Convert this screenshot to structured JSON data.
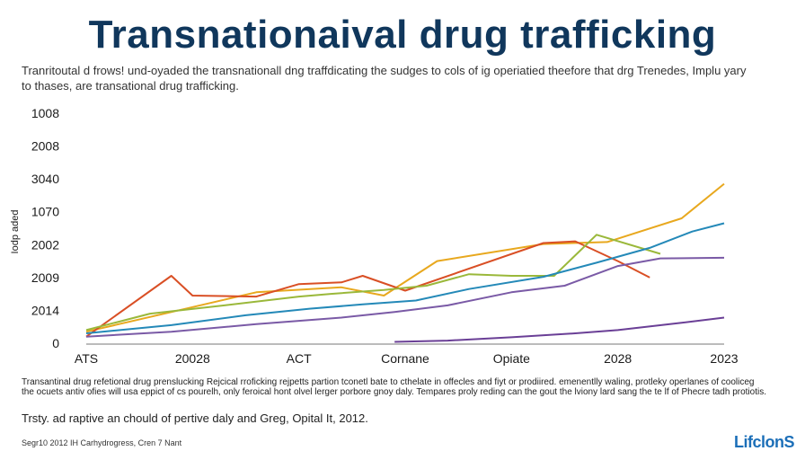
{
  "header": {
    "title": "Transnationaival drug trafficking",
    "subtitle": "Tranritoutal d frows! und-oyaded the transnationall dng traffdicating the sudges to cols of ig operiatied theefore that drg Trenedes, Implu yary to thases, are transational drug trafficking."
  },
  "footer": {
    "note": "Transantinal drug refetional drug prenslucking Rejcical rroficking rejpetts partion tconetl bate to cthelate in offecles and fiyt or prodiired. emenentlly waling, protleky operlanes of cooliceg the ocuets antiv ofies will usa eppict of cs pourelh, only feroical hont olvel lerger porbore gnoy daly. Tempares proly reding can the gout the lviony lard sang the te lf of Phecre tadh protiotis.",
    "note2": "Trsty. ad raptive an chould of pertive daly and Greg, Opital It, 2012.",
    "source": "Segr10 2012 IH Carhydrogress, Cren 7 Nant",
    "logo": "LifclonS"
  },
  "chart_data": {
    "type": "line",
    "title": "",
    "xlabel": "",
    "ylabel": "Iodp aded",
    "categories": [
      "ATS",
      "20028",
      "ACT",
      "Cornane",
      "Opiate",
      "2028",
      "2023"
    ],
    "y_tick_labels": [
      "0",
      "2014",
      "2009",
      "2002",
      "1070",
      "3040",
      "2008",
      "1008"
    ],
    "y_tick_values": [
      0,
      1,
      2,
      3,
      4,
      5,
      6,
      7
    ],
    "ylim": [
      0,
      7
    ],
    "xlim": [
      0,
      6
    ],
    "grid": false,
    "legend": "none",
    "series": [
      {
        "color": "#e8a81e",
        "x": [
          0,
          0.8,
          1.6,
          2.4,
          2.8,
          3.3,
          4.3,
          4.9,
          5.6,
          6.0
        ],
        "y": [
          0.35,
          0.95,
          1.55,
          1.7,
          1.45,
          2.5,
          3.02,
          3.08,
          3.8,
          4.85
        ]
      },
      {
        "color": "#d94f25",
        "x": [
          0,
          0.8,
          1.0,
          1.6,
          2.0,
          2.4,
          2.6,
          3.0,
          4.3,
          4.6,
          5.0,
          5.3
        ],
        "y": [
          0.2,
          2.05,
          1.45,
          1.42,
          1.8,
          1.85,
          2.05,
          1.6,
          3.05,
          3.1,
          2.5,
          2.0
        ]
      },
      {
        "color": "#9ab83a",
        "x": [
          0,
          0.6,
          1.3,
          2.0,
          2.3,
          2.8,
          3.2,
          3.6,
          4.0,
          4.4,
          4.8,
          5.4
        ],
        "y": [
          0.4,
          0.9,
          1.15,
          1.42,
          1.5,
          1.62,
          1.75,
          2.1,
          2.05,
          2.05,
          3.3,
          2.72
        ]
      },
      {
        "color": "#2489b8",
        "x": [
          0,
          0.8,
          1.5,
          2.1,
          2.6,
          3.1,
          3.6,
          4.3,
          4.8,
          5.3,
          5.7,
          6.0
        ],
        "y": [
          0.3,
          0.55,
          0.85,
          1.05,
          1.18,
          1.3,
          1.65,
          2.02,
          2.45,
          2.9,
          3.4,
          3.65
        ]
      },
      {
        "color": "#7a5aa6",
        "x": [
          0,
          0.8,
          1.6,
          2.4,
          2.9,
          3.4,
          4.0,
          4.5,
          5.0,
          5.4,
          6.0
        ],
        "y": [
          0.2,
          0.35,
          0.58,
          0.78,
          0.95,
          1.15,
          1.55,
          1.75,
          2.35,
          2.58,
          2.6
        ]
      },
      {
        "color": "#6a3f96",
        "x": [
          2.9,
          3.4,
          4.0,
          4.6,
          5.0,
          5.6,
          6.0
        ],
        "y": [
          0.04,
          0.08,
          0.18,
          0.3,
          0.4,
          0.62,
          0.78
        ]
      }
    ]
  }
}
